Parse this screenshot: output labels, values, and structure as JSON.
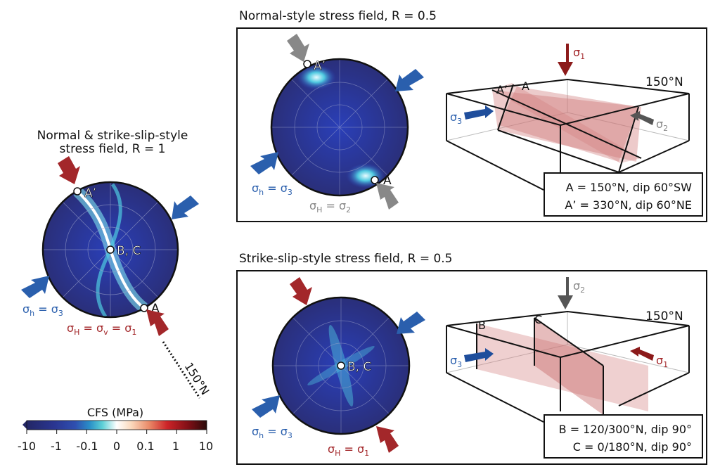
{
  "left_panel": {
    "title_line1": "Normal & strike-slip-style",
    "title_line2": "stress field, R = 1",
    "point_a": "A",
    "point_a_prime": "A’",
    "point_bc": "B, C",
    "sigma_h_label": "σh = σ3",
    "sigma_h_main": "σ",
    "sigma_h_sub": "h",
    "sigma_h_eq": " = σ",
    "sigma_h_sub2": "3",
    "sigma_H_main": "σ",
    "sigma_H_sub": "H",
    "sigma_H_eq1": " = σ",
    "sigma_H_sub2": "v",
    "sigma_H_eq2": " = σ",
    "sigma_H_sub3": "1",
    "strike_label": "150°N"
  },
  "colorbar": {
    "title": "CFS (MPa)",
    "ticks": [
      "-10",
      "-1",
      "-0.1",
      "0",
      "0.1",
      "1",
      "10"
    ],
    "colors": [
      "#232766",
      "#2a3590",
      "#2f4fb0",
      "#2a7cc5",
      "#3fb6c8",
      "#8fdde0",
      "#ffffff",
      "#fbe0c8",
      "#f2b08c",
      "#e2604a",
      "#c8202a",
      "#8c1018",
      "#2a0a0a"
    ]
  },
  "top_panel": {
    "title": "Normal-style stress field, R = 0.5",
    "point_a": "A",
    "point_a_prime": "A’",
    "sigma_h_main": "σ",
    "sigma_h_sub": "h",
    "sigma_h_eq": " = σ",
    "sigma_h_sub2": "3",
    "sigma_H_main": "σ",
    "sigma_H_sub": "H",
    "sigma_H_eq": " = σ",
    "sigma_H_sub2": "2",
    "block_sigma1": "σ",
    "block_sigma1_sub": "1",
    "block_sigma3": "σ",
    "block_sigma3_sub": "3",
    "block_sigma2": "σ",
    "block_sigma2_sub": "2",
    "block_a_prime": "A’",
    "block_a": "A",
    "strike_label": "150°N",
    "legend_line1": "A = 150°N, dip 60°SW",
    "legend_line2": "A’ = 330°N, dip 60°NE"
  },
  "bottom_panel": {
    "title": "Strike-slip-style stress field, R = 0.5",
    "point_bc": "B, C",
    "sigma_h_main": "σ",
    "sigma_h_sub": "h",
    "sigma_h_eq": " = σ",
    "sigma_h_sub2": "3",
    "sigma_H_main": "σ",
    "sigma_H_sub": "H",
    "sigma_H_eq": " = σ",
    "sigma_H_sub2": "1",
    "block_sigma2": "σ",
    "block_sigma2_sub": "2",
    "block_sigma3": "σ",
    "block_sigma3_sub": "3",
    "block_sigma1": "σ",
    "block_sigma1_sub": "1",
    "block_b": "B",
    "block_c": "C",
    "strike_label": "150°N",
    "legend_line1": "B = 120/300°N, dip 90°",
    "legend_line2": "C = 0/180°N, dip 90°"
  }
}
